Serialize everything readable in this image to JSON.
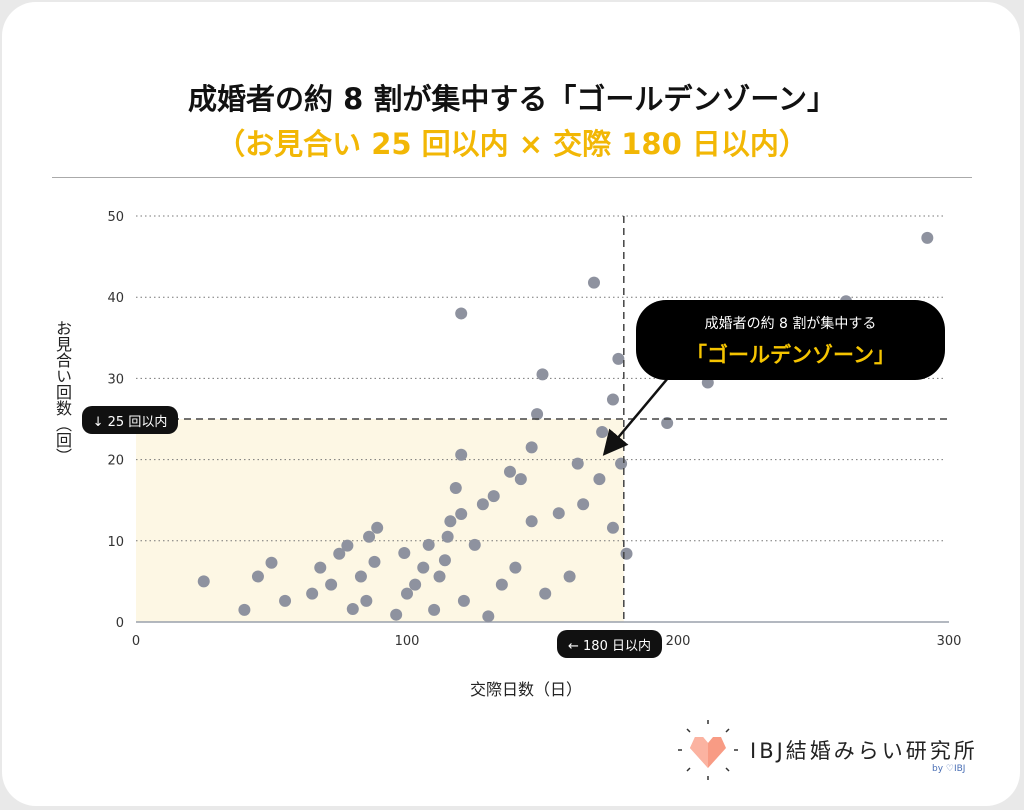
{
  "header": {
    "title": "成婚者の約 8 割が集中する「ゴールデンゾーン」",
    "subtitle": "（お見合い 25 回以内 × 交際 180 日以内）"
  },
  "chart_data": {
    "type": "scatter",
    "xlabel": "交際日数（日）",
    "ylabel": "お見合い回数（回）",
    "xlim": [
      0,
      300
    ],
    "ylim": [
      0,
      50
    ],
    "xticks": [
      0,
      100,
      200,
      300
    ],
    "yticks": [
      0,
      10,
      20,
      30,
      40,
      50
    ],
    "grid": "horizontal dotted",
    "zone": {
      "x_max": 180,
      "y_max": 25,
      "x_label": "← 180 日以内",
      "y_label": "↓ 25 回以内",
      "color": "#FDF7E4"
    },
    "annotation": {
      "line1": "成婚者の約 8 割が集中する",
      "line2": "「ゴールデンゾーン」"
    },
    "point_color": "#8E929F",
    "points": [
      [
        25,
        5
      ],
      [
        40,
        1.5
      ],
      [
        45,
        5.6
      ],
      [
        50,
        7.3
      ],
      [
        55,
        2.6
      ],
      [
        65,
        3.5
      ],
      [
        68,
        6.7
      ],
      [
        72,
        4.6
      ],
      [
        75,
        8.4
      ],
      [
        78,
        9.4
      ],
      [
        80,
        1.6
      ],
      [
        83,
        5.6
      ],
      [
        85,
        2.6
      ],
      [
        86,
        10.5
      ],
      [
        88,
        7.4
      ],
      [
        89,
        11.6
      ],
      [
        96,
        0.9
      ],
      [
        99,
        8.5
      ],
      [
        100,
        3.5
      ],
      [
        103,
        4.6
      ],
      [
        106,
        6.7
      ],
      [
        108,
        9.5
      ],
      [
        110,
        1.5
      ],
      [
        112,
        5.6
      ],
      [
        114,
        7.6
      ],
      [
        115,
        10.5
      ],
      [
        116,
        12.4
      ],
      [
        118,
        16.5
      ],
      [
        120,
        38
      ],
      [
        120,
        13.3
      ],
      [
        120,
        20.6
      ],
      [
        121,
        2.6
      ],
      [
        125,
        9.5
      ],
      [
        128,
        14.5
      ],
      [
        130,
        0.7
      ],
      [
        132,
        15.5
      ],
      [
        135,
        4.6
      ],
      [
        138,
        18.5
      ],
      [
        140,
        6.7
      ],
      [
        142,
        17.6
      ],
      [
        146,
        12.4
      ],
      [
        146,
        21.5
      ],
      [
        148,
        25.6
      ],
      [
        150,
        30.5
      ],
      [
        151,
        3.5
      ],
      [
        156,
        13.4
      ],
      [
        160,
        5.6
      ],
      [
        163,
        19.5
      ],
      [
        165,
        14.5
      ],
      [
        169,
        41.8
      ],
      [
        171,
        17.6
      ],
      [
        172,
        23.4
      ],
      [
        176,
        27.4
      ],
      [
        176,
        11.6
      ],
      [
        178,
        32.4
      ],
      [
        179,
        19.5
      ],
      [
        181,
        8.4
      ],
      [
        196,
        24.5
      ],
      [
        211,
        29.5
      ],
      [
        262,
        39.5
      ],
      [
        292,
        47.3
      ]
    ]
  },
  "logo": {
    "name": "IBJ結婚みらい研究所",
    "sub": "by ♡IBJ"
  }
}
